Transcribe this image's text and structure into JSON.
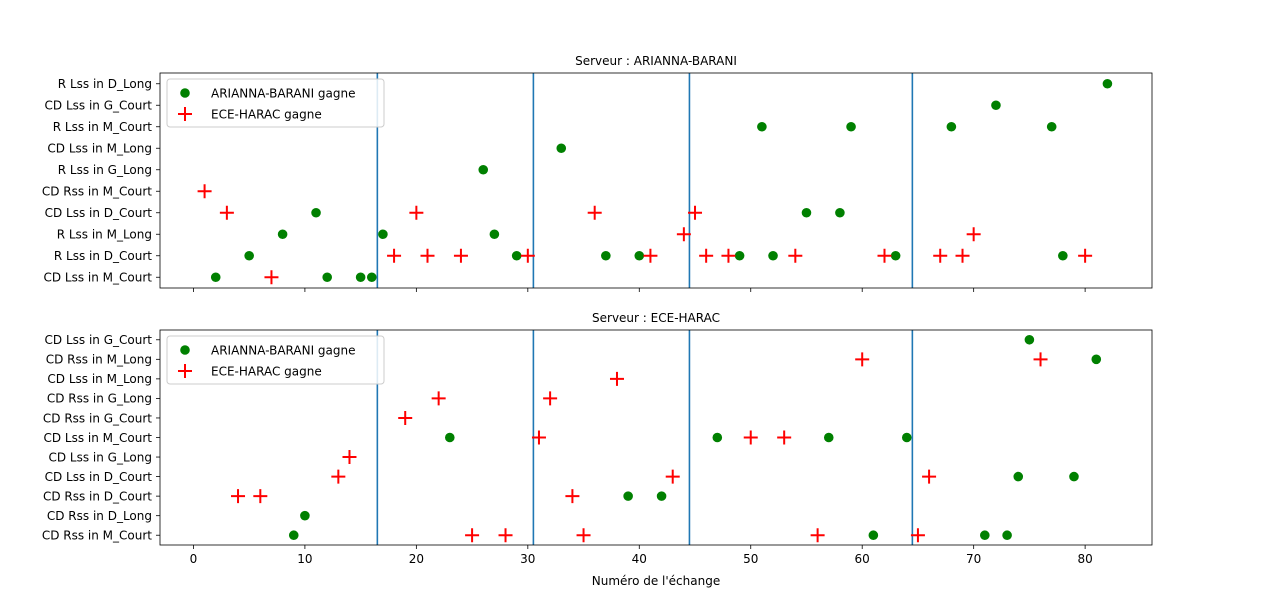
{
  "colors": {
    "winA": "#008000",
    "winB": "#ff0000",
    "vline": "#1f77b4",
    "axis": "#000000"
  },
  "chart_data": [
    {
      "type": "scatter",
      "title": "Serveur : ARIANNA-BARANI",
      "xlabel": "",
      "xlim": [
        -3,
        86
      ],
      "xticks": [
        0,
        10,
        20,
        30,
        40,
        50,
        60,
        70,
        80
      ],
      "show_xtick_labels": false,
      "categories": [
        "CD Lss in M_Court",
        "R Lss in D_Court",
        "R Lss in M_Long",
        "CD Lss in D_Court",
        "CD Rss in M_Court",
        "R Lss in G_Long",
        "CD Lss in M_Long",
        "R Lss in M_Court",
        "CD Lss in G_Court",
        "R Lss in D_Long"
      ],
      "vlines": [
        16.5,
        30.5,
        44.5,
        64.5
      ],
      "legend": "upper-left",
      "series": [
        {
          "name": "ARIANNA-BARANI gagne",
          "marker": "circle",
          "points": [
            [
              2,
              "CD Lss in M_Court"
            ],
            [
              5,
              "R Lss in D_Court"
            ],
            [
              8,
              "R Lss in M_Long"
            ],
            [
              11,
              "CD Lss in D_Court"
            ],
            [
              12,
              "CD Lss in M_Court"
            ],
            [
              15,
              "CD Lss in M_Court"
            ],
            [
              16,
              "CD Lss in M_Court"
            ],
            [
              17,
              "R Lss in M_Long"
            ],
            [
              26,
              "R Lss in G_Long"
            ],
            [
              27,
              "R Lss in M_Long"
            ],
            [
              29,
              "R Lss in D_Court"
            ],
            [
              33,
              "CD Lss in M_Long"
            ],
            [
              37,
              "R Lss in D_Court"
            ],
            [
              40,
              "R Lss in D_Court"
            ],
            [
              49,
              "R Lss in D_Court"
            ],
            [
              51,
              "R Lss in M_Court"
            ],
            [
              52,
              "R Lss in D_Court"
            ],
            [
              55,
              "CD Lss in D_Court"
            ],
            [
              58,
              "CD Lss in D_Court"
            ],
            [
              59,
              "R Lss in M_Court"
            ],
            [
              63,
              "R Lss in D_Court"
            ],
            [
              68,
              "R Lss in M_Court"
            ],
            [
              72,
              "CD Lss in G_Court"
            ],
            [
              77,
              "R Lss in M_Court"
            ],
            [
              78,
              "R Lss in D_Court"
            ],
            [
              82,
              "R Lss in D_Long"
            ]
          ]
        },
        {
          "name": "ECE-HARAC gagne",
          "marker": "plus",
          "points": [
            [
              1,
              "CD Rss in M_Court"
            ],
            [
              3,
              "CD Lss in D_Court"
            ],
            [
              7,
              "CD Lss in M_Court"
            ],
            [
              18,
              "R Lss in D_Court"
            ],
            [
              20,
              "CD Lss in D_Court"
            ],
            [
              21,
              "R Lss in D_Court"
            ],
            [
              24,
              "R Lss in D_Court"
            ],
            [
              30,
              "R Lss in D_Court"
            ],
            [
              36,
              "CD Lss in D_Court"
            ],
            [
              41,
              "R Lss in D_Court"
            ],
            [
              44,
              "R Lss in M_Long"
            ],
            [
              45,
              "CD Lss in D_Court"
            ],
            [
              46,
              "R Lss in D_Court"
            ],
            [
              48,
              "R Lss in D_Court"
            ],
            [
              54,
              "R Lss in D_Court"
            ],
            [
              62,
              "R Lss in D_Court"
            ],
            [
              67,
              "R Lss in D_Court"
            ],
            [
              69,
              "R Lss in D_Court"
            ],
            [
              70,
              "R Lss in M_Long"
            ],
            [
              80,
              "R Lss in D_Court"
            ]
          ]
        }
      ]
    },
    {
      "type": "scatter",
      "title": "Serveur : ECE-HARAC",
      "xlabel": "Numéro de l'échange",
      "xlim": [
        -3,
        86
      ],
      "xticks": [
        0,
        10,
        20,
        30,
        40,
        50,
        60,
        70,
        80
      ],
      "show_xtick_labels": true,
      "categories": [
        "CD Rss in M_Court",
        "CD Rss in D_Long",
        "CD Rss in D_Court",
        "CD Lss in D_Court",
        "CD Lss in G_Long",
        "CD Lss in M_Court",
        "CD Rss in G_Court",
        "CD Rss in G_Long",
        "CD Lss in M_Long",
        "CD Rss in M_Long",
        "CD Lss in G_Court"
      ],
      "vlines": [
        16.5,
        30.5,
        44.5,
        64.5
      ],
      "legend": "upper-left",
      "series": [
        {
          "name": "ARIANNA-BARANI gagne",
          "marker": "circle",
          "points": [
            [
              9,
              "CD Rss in M_Court"
            ],
            [
              10,
              "CD Rss in D_Long"
            ],
            [
              23,
              "CD Lss in M_Court"
            ],
            [
              39,
              "CD Rss in D_Court"
            ],
            [
              42,
              "CD Rss in D_Court"
            ],
            [
              47,
              "CD Lss in M_Court"
            ],
            [
              57,
              "CD Lss in M_Court"
            ],
            [
              61,
              "CD Rss in M_Court"
            ],
            [
              64,
              "CD Lss in M_Court"
            ],
            [
              71,
              "CD Rss in M_Court"
            ],
            [
              73,
              "CD Rss in M_Court"
            ],
            [
              74,
              "CD Lss in D_Court"
            ],
            [
              75,
              "CD Lss in G_Court"
            ],
            [
              79,
              "CD Lss in D_Court"
            ],
            [
              81,
              "CD Rss in M_Long"
            ]
          ]
        },
        {
          "name": "ECE-HARAC gagne",
          "marker": "plus",
          "points": [
            [
              4,
              "CD Rss in D_Court"
            ],
            [
              6,
              "CD Rss in D_Court"
            ],
            [
              13,
              "CD Lss in D_Court"
            ],
            [
              14,
              "CD Lss in G_Long"
            ],
            [
              19,
              "CD Rss in G_Court"
            ],
            [
              22,
              "CD Rss in G_Long"
            ],
            [
              25,
              "CD Rss in M_Court"
            ],
            [
              28,
              "CD Rss in M_Court"
            ],
            [
              31,
              "CD Lss in M_Court"
            ],
            [
              32,
              "CD Rss in G_Long"
            ],
            [
              34,
              "CD Rss in D_Court"
            ],
            [
              35,
              "CD Rss in M_Court"
            ],
            [
              38,
              "CD Lss in M_Long"
            ],
            [
              43,
              "CD Lss in D_Court"
            ],
            [
              50,
              "CD Lss in M_Court"
            ],
            [
              53,
              "CD Lss in M_Court"
            ],
            [
              56,
              "CD Rss in M_Court"
            ],
            [
              60,
              "CD Rss in M_Long"
            ],
            [
              65,
              "CD Rss in M_Court"
            ],
            [
              66,
              "CD Lss in D_Court"
            ],
            [
              76,
              "CD Rss in M_Long"
            ]
          ]
        }
      ]
    }
  ]
}
